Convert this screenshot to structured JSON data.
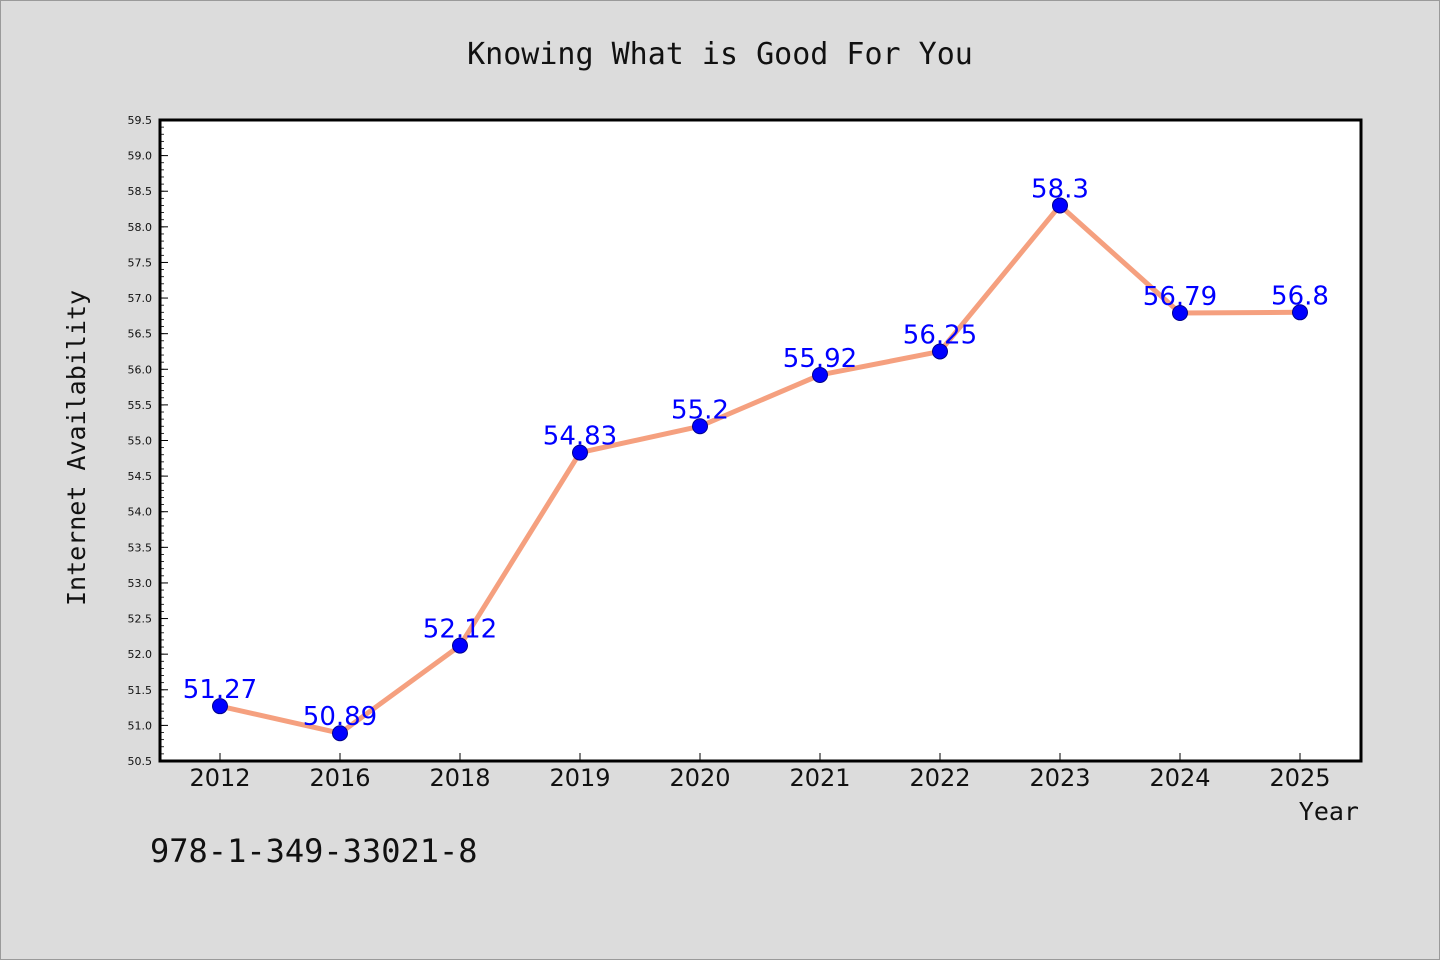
{
  "caption": "978-1-349-33021-8",
  "colors": {
    "background": "#dcdcdc",
    "plot_background": "#ffffff",
    "line": "#f5a07f",
    "marker": "#0000ff",
    "label": "#0000ff"
  },
  "chart_data": {
    "type": "line",
    "title": "Knowing What is Good For You",
    "xlabel": "Year",
    "ylabel": "Internet Availability",
    "categories": [
      "2012",
      "2016",
      "2018",
      "2019",
      "2020",
      "2021",
      "2022",
      "2023",
      "2024",
      "2025"
    ],
    "series": [
      {
        "values": [
          51.27,
          50.89,
          52.12,
          54.83,
          55.2,
          55.92,
          56.25,
          58.3,
          56.79,
          56.8
        ],
        "labels": [
          "51.27",
          "50.89",
          "52.12",
          "54.83",
          "55.2",
          "55.92",
          "56.25",
          "58.3",
          "56.79",
          "56.8"
        ]
      }
    ],
    "ylim": [
      50.5,
      59.5
    ],
    "yticks": [
      "50.5",
      "51.0",
      "51.5",
      "52.0",
      "52.5",
      "53.0",
      "53.5",
      "54.0",
      "54.5",
      "55.0",
      "55.5",
      "56.0",
      "56.5",
      "57.0",
      "57.5",
      "58.0",
      "58.5",
      "59.0",
      "59.5"
    ],
    "grid": false,
    "legend": "none"
  }
}
